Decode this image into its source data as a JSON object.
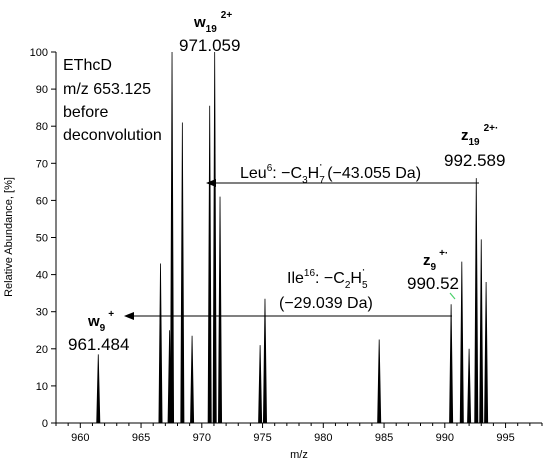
{
  "chart_data": {
    "type": "bar",
    "xlabel": "m/z",
    "ylabel": "Relative Abundance, [%]",
    "xlim": [
      958,
      998
    ],
    "ylim": [
      0,
      100
    ],
    "xticks": [
      960,
      965,
      970,
      975,
      980,
      985,
      990,
      995
    ],
    "yticks": [
      0,
      10,
      20,
      30,
      40,
      50,
      60,
      70,
      80,
      90,
      100
    ],
    "grid": false,
    "peaks": {
      "x": [
        961.48,
        966.6,
        967.35,
        967.55,
        968.4,
        969.2,
        970.65,
        971.06,
        971.5,
        974.8,
        975.2,
        984.6,
        990.52,
        991.4,
        992.0,
        992.59,
        993.0,
        993.4
      ],
      "y": [
        18.5,
        43,
        25,
        100,
        81,
        23.5,
        85.5,
        100,
        61,
        21,
        33.5,
        22.5,
        32,
        43.5,
        20,
        66,
        49.5,
        38
      ]
    },
    "note_lines": [
      "EThcD",
      "m/z 653.125",
      "before",
      "deconvolution"
    ],
    "annotations": {
      "w19": {
        "ion": "w",
        "sub": "19",
        "sup": "2+",
        "mz": "971.059"
      },
      "z19": {
        "ion": "z",
        "sub": "19",
        "sup": "2+·",
        "mz": "992.589"
      },
      "z9": {
        "ion": "z",
        "sub": "9",
        "sup": "+·",
        "mz": "990.52"
      },
      "w9": {
        "ion": "w",
        "sub": "9",
        "sup": "+",
        "mz": "961.484"
      },
      "leu": {
        "residue": "Leu",
        "pos": "6",
        "loss": ": −C",
        "c": "3",
        "h": "H",
        "hsub": "7",
        "dot": "·",
        "delta": " (−43.055 Da)"
      },
      "ile": {
        "residue": "Ile",
        "pos": "16",
        "loss": ": −C",
        "c": "2",
        "h": "H",
        "hsub": "5",
        "dot": "·",
        "delta": "(−29.039 Da)"
      }
    }
  }
}
